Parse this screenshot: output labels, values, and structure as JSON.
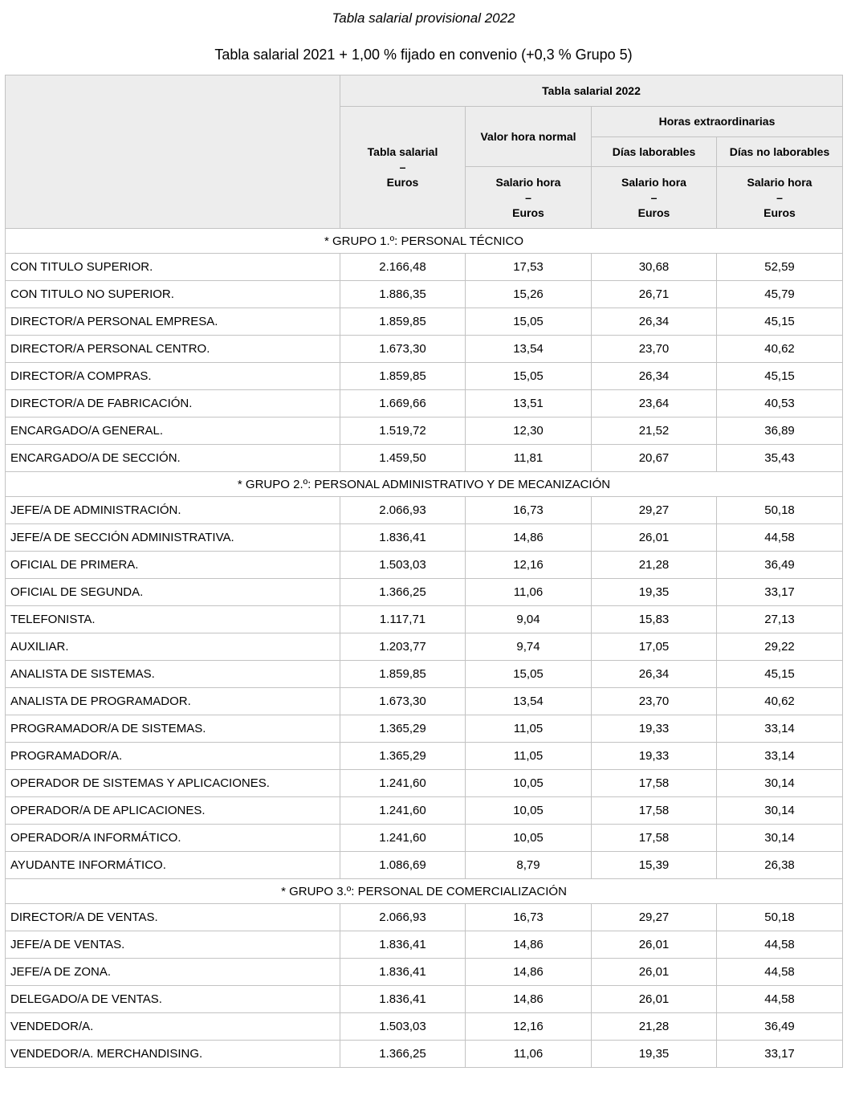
{
  "title": "Tabla salarial provisional 2022",
  "subtitle": "Tabla salarial 2021 + 1,00 % fijado en convenio (+0,3 % Grupo 5)",
  "colors": {
    "header_background": "#ededed",
    "border": "#c3c3c3",
    "text": "#000000",
    "row_background": "#ffffff"
  },
  "table": {
    "header": {
      "year_title": "Tabla salarial 2022",
      "salary_column": {
        "line1": "Tabla salarial",
        "line2": "–",
        "line3": "Euros"
      },
      "normal_hour": "Valor hora normal",
      "overtime": "Horas extraordinarias",
      "working_days": "Días laborables",
      "non_working_days": "Días no laborables",
      "hour_salary": {
        "line1": "Salario hora",
        "line2": "–",
        "line3": "Euros"
      }
    },
    "groups": [
      {
        "label": "* GRUPO 1.º: PERSONAL TÉCNICO",
        "rows": [
          {
            "category": "CON TITULO SUPERIOR.",
            "values": [
              "2.166,48",
              "17,53",
              "30,68",
              "52,59"
            ]
          },
          {
            "category": "CON TITULO NO SUPERIOR.",
            "values": [
              "1.886,35",
              "15,26",
              "26,71",
              "45,79"
            ]
          },
          {
            "category": "DIRECTOR/A PERSONAL EMPRESA.",
            "values": [
              "1.859,85",
              "15,05",
              "26,34",
              "45,15"
            ]
          },
          {
            "category": "DIRECTOR/A PERSONAL CENTRO.",
            "values": [
              "1.673,30",
              "13,54",
              "23,70",
              "40,62"
            ]
          },
          {
            "category": "DIRECTOR/A COMPRAS.",
            "values": [
              "1.859,85",
              "15,05",
              "26,34",
              "45,15"
            ]
          },
          {
            "category": "DIRECTOR/A DE FABRICACIÓN.",
            "values": [
              "1.669,66",
              "13,51",
              "23,64",
              "40,53"
            ]
          },
          {
            "category": "ENCARGADO/A GENERAL.",
            "values": [
              "1.519,72",
              "12,30",
              "21,52",
              "36,89"
            ]
          },
          {
            "category": "ENCARGADO/A DE SECCIÓN.",
            "values": [
              "1.459,50",
              "11,81",
              "20,67",
              "35,43"
            ]
          }
        ]
      },
      {
        "label": "* GRUPO 2.º: PERSONAL ADMINISTRATIVO Y DE MECANIZACIÓN",
        "rows": [
          {
            "category": "JEFE/A DE ADMINISTRACIÓN.",
            "values": [
              "2.066,93",
              "16,73",
              "29,27",
              "50,18"
            ]
          },
          {
            "category": "JEFE/A DE SECCIÓN ADMINISTRATIVA.",
            "values": [
              "1.836,41",
              "14,86",
              "26,01",
              "44,58"
            ]
          },
          {
            "category": "OFICIAL DE PRIMERA.",
            "values": [
              "1.503,03",
              "12,16",
              "21,28",
              "36,49"
            ]
          },
          {
            "category": "OFICIAL DE SEGUNDA.",
            "values": [
              "1.366,25",
              "11,06",
              "19,35",
              "33,17"
            ]
          },
          {
            "category": "TELEFONISTA.",
            "values": [
              "1.117,71",
              "9,04",
              "15,83",
              "27,13"
            ]
          },
          {
            "category": "AUXILIAR.",
            "values": [
              "1.203,77",
              "9,74",
              "17,05",
              "29,22"
            ]
          },
          {
            "category": "ANALISTA DE SISTEMAS.",
            "values": [
              "1.859,85",
              "15,05",
              "26,34",
              "45,15"
            ]
          },
          {
            "category": "ANALISTA DE PROGRAMADOR.",
            "values": [
              "1.673,30",
              "13,54",
              "23,70",
              "40,62"
            ]
          },
          {
            "category": "PROGRAMADOR/A DE SISTEMAS.",
            "values": [
              "1.365,29",
              "11,05",
              "19,33",
              "33,14"
            ]
          },
          {
            "category": "PROGRAMADOR/A.",
            "values": [
              "1.365,29",
              "11,05",
              "19,33",
              "33,14"
            ]
          },
          {
            "category": "OPERADOR DE SISTEMAS Y APLICACIONES.",
            "values": [
              "1.241,60",
              "10,05",
              "17,58",
              "30,14"
            ]
          },
          {
            "category": "OPERADOR/A DE APLICACIONES.",
            "values": [
              "1.241,60",
              "10,05",
              "17,58",
              "30,14"
            ]
          },
          {
            "category": "OPERADOR/A INFORMÁTICO.",
            "values": [
              "1.241,60",
              "10,05",
              "17,58",
              "30,14"
            ]
          },
          {
            "category": "AYUDANTE INFORMÁTICO.",
            "values": [
              "1.086,69",
              "8,79",
              "15,39",
              "26,38"
            ]
          }
        ]
      },
      {
        "label": "* GRUPO 3.º: PERSONAL DE COMERCIALIZACIÓN",
        "rows": [
          {
            "category": "DIRECTOR/A DE VENTAS.",
            "values": [
              "2.066,93",
              "16,73",
              "29,27",
              "50,18"
            ]
          },
          {
            "category": "JEFE/A DE VENTAS.",
            "values": [
              "1.836,41",
              "14,86",
              "26,01",
              "44,58"
            ]
          },
          {
            "category": "JEFE/A DE ZONA.",
            "values": [
              "1.836,41",
              "14,86",
              "26,01",
              "44,58"
            ]
          },
          {
            "category": "DELEGADO/A DE VENTAS.",
            "values": [
              "1.836,41",
              "14,86",
              "26,01",
              "44,58"
            ]
          },
          {
            "category": "VENDEDOR/A.",
            "values": [
              "1.503,03",
              "12,16",
              "21,28",
              "36,49"
            ]
          },
          {
            "category": "VENDEDOR/A. MERCHANDISING.",
            "values": [
              "1.366,25",
              "11,06",
              "19,35",
              "33,17"
            ]
          }
        ]
      }
    ]
  }
}
